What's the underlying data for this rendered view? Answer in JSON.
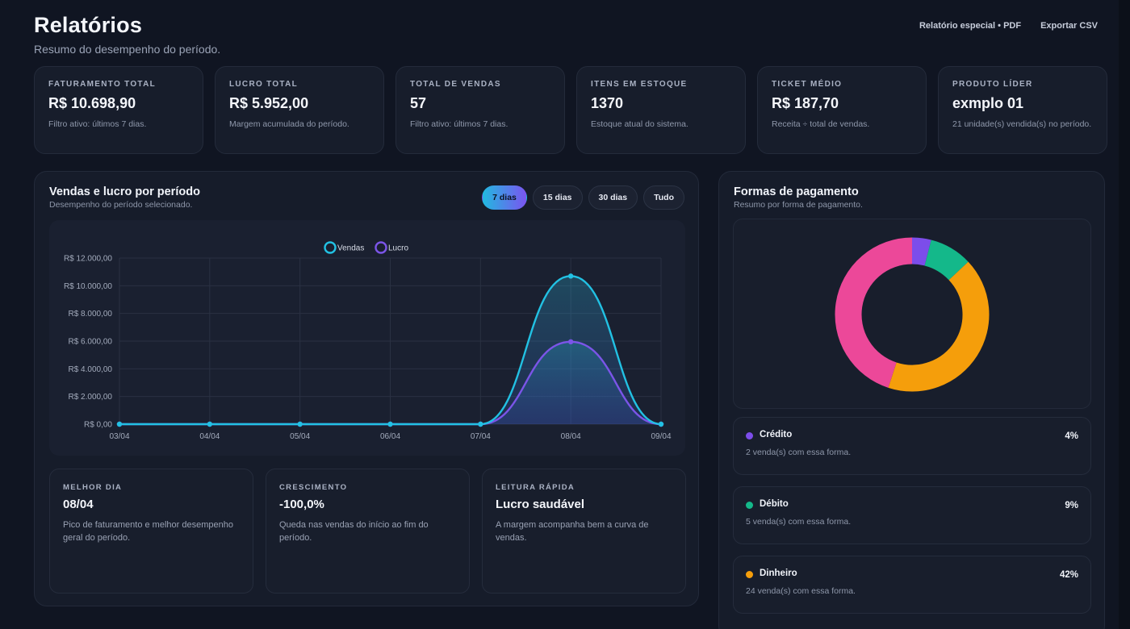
{
  "header": {
    "title": "Relatórios",
    "subtitle": "Resumo do desempenho do período.",
    "actions": [
      "Relatório especial • PDF",
      "Exportar CSV"
    ]
  },
  "stats": [
    {
      "label": "FATURAMENTO TOTAL",
      "value": "R$ 10.698,90",
      "note": "Filtro ativo: últimos 7 dias."
    },
    {
      "label": "LUCRO TOTAL",
      "value": "R$ 5.952,00",
      "note": "Margem acumulada do período."
    },
    {
      "label": "TOTAL DE VENDAS",
      "value": "57",
      "note": "Filtro ativo: últimos 7 dias."
    },
    {
      "label": "ITENS EM ESTOQUE",
      "value": "1370",
      "note": "Estoque atual do sistema."
    },
    {
      "label": "TICKET MÉDIO",
      "value": "R$ 187,70",
      "note": "Receita ÷ total de vendas."
    },
    {
      "label": "PRODUTO LÍDER",
      "value": "exmplo 01",
      "note": "21 unidade(s) vendida(s) no período."
    }
  ],
  "sales_panel": {
    "title": "Vendas e lucro por período",
    "subtitle": "Desempenho do período selecionado.",
    "ranges": [
      "7 dias",
      "15 dias",
      "30 dias",
      "Tudo"
    ],
    "active_range": "7 dias"
  },
  "chart_data": {
    "type": "line",
    "x": [
      "03/04",
      "04/04",
      "05/04",
      "06/04",
      "07/04",
      "08/04",
      "09/04"
    ],
    "series": [
      {
        "name": "Vendas",
        "values": [
          0,
          0,
          0,
          0,
          0,
          10698.9,
          0
        ],
        "color": "#22c1e3"
      },
      {
        "name": "Lucro",
        "values": [
          0,
          0,
          0,
          0,
          0,
          5952,
          0
        ],
        "color": "#7b55e8"
      }
    ],
    "ylim": [
      0,
      12000
    ],
    "yticks": [
      {
        "value": 0,
        "label": "R$ 0,00"
      },
      {
        "value": 2000,
        "label": "R$ 2.000,00"
      },
      {
        "value": 4000,
        "label": "R$ 4.000,00"
      },
      {
        "value": 6000,
        "label": "R$ 6.000,00"
      },
      {
        "value": 8000,
        "label": "R$ 8.000,00"
      },
      {
        "value": 10000,
        "label": "R$ 10.000,00"
      },
      {
        "value": 12000,
        "label": "R$ 12.000,00"
      }
    ],
    "grid": true,
    "legend": "top-center"
  },
  "insights": [
    {
      "label": "MELHOR DIA",
      "value": "08/04",
      "note": "Pico de faturamento e melhor desempenho geral do período."
    },
    {
      "label": "CRESCIMENTO",
      "value": "-100,0%",
      "note": "Queda nas vendas do início ao fim do período."
    },
    {
      "label": "LEITURA RÁPIDA",
      "value": "Lucro saudável",
      "note": "A margem acompanha bem a curva de vendas."
    }
  ],
  "payments_panel": {
    "title": "Formas de pagamento",
    "subtitle": "Resumo por forma de pagamento."
  },
  "payments": [
    {
      "name": "Crédito",
      "pct": "4%",
      "share": 4,
      "note": "2 venda(s) com essa forma.",
      "color": "#7c4dea"
    },
    {
      "name": "Débito",
      "pct": "9%",
      "share": 9,
      "note": "5 venda(s) com essa forma.",
      "color": "#14b88a"
    },
    {
      "name": "Dinheiro",
      "pct": "42%",
      "share": 42,
      "note": "24 venda(s) com essa forma.",
      "color": "#f59e0b"
    }
  ],
  "donut_other": {
    "share": 45,
    "color": "#ec4899"
  }
}
